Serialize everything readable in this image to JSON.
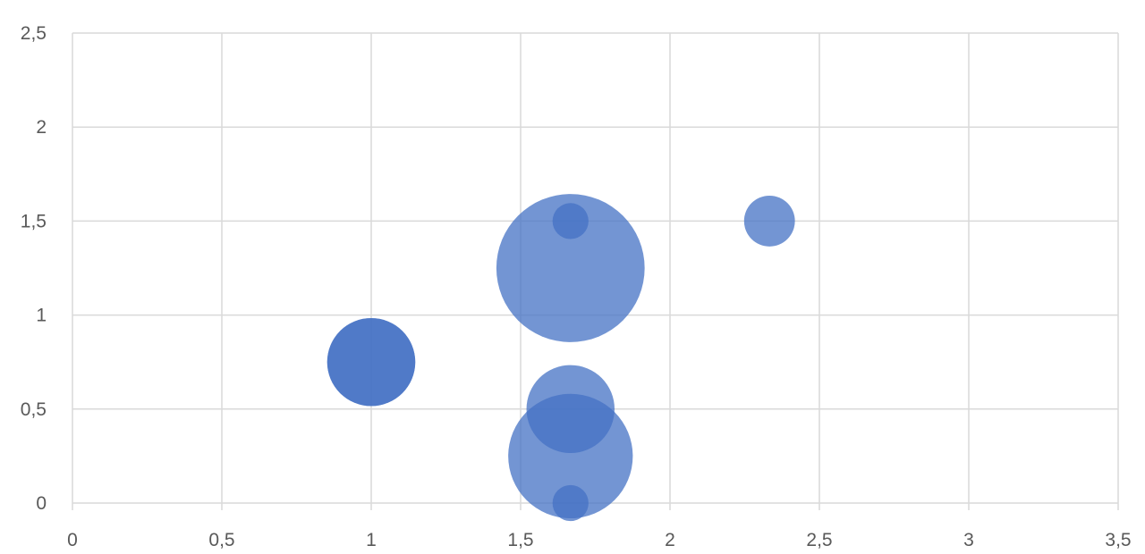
{
  "chart_data": {
    "type": "bubble",
    "title": "",
    "xlabel": "",
    "ylabel": "",
    "xlim": [
      0,
      3.5
    ],
    "ylim": [
      0,
      2.5
    ],
    "x_ticks": [
      "0",
      "0,5",
      "1",
      "1,5",
      "2",
      "2,5",
      "3",
      "3,5"
    ],
    "y_ticks": [
      "0",
      "0,5",
      "1",
      "1,5",
      "2",
      "2,5"
    ],
    "x_tick_values": [
      0,
      0.5,
      1,
      1.5,
      2,
      2.5,
      3,
      3.5
    ],
    "y_tick_values": [
      0,
      0.5,
      1,
      1.5,
      2,
      2.5
    ],
    "grid": true,
    "legend": "none",
    "color": "#4472C4",
    "series": [
      {
        "points": [
          {
            "x": 1,
            "y": 0.75,
            "size": 6
          },
          {
            "x": 1,
            "y": 0.75,
            "size": 6
          },
          {
            "x": 1.667,
            "y": 1.25,
            "size": 17
          },
          {
            "x": 1.667,
            "y": 1.5,
            "size": 1
          },
          {
            "x": 2.333,
            "y": 1.5,
            "size": 2
          },
          {
            "x": 1.667,
            "y": 0.5,
            "size": 6
          },
          {
            "x": 1.667,
            "y": 0.25,
            "size": 12
          },
          {
            "x": 1.667,
            "y": 0,
            "size": 1
          }
        ]
      }
    ]
  }
}
